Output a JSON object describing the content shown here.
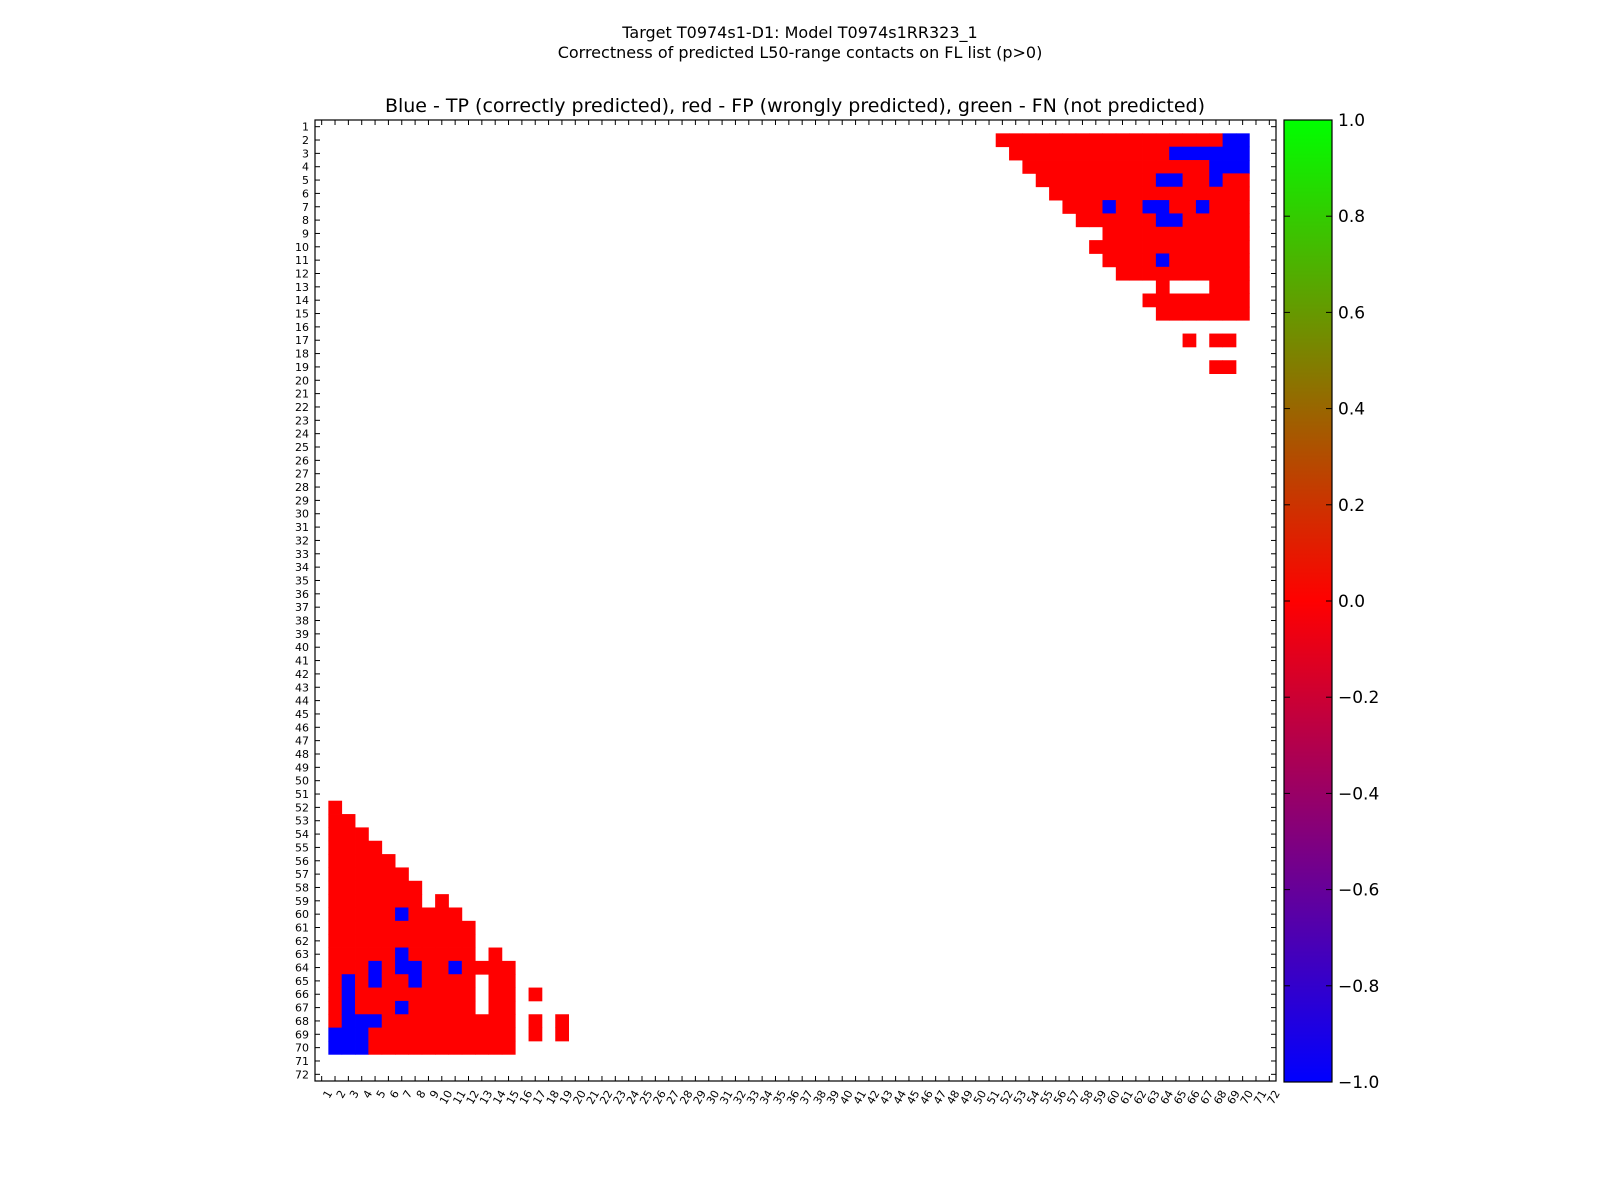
{
  "figure": {
    "suptitle_line1": "Target T0974s1-D1: Model T0974s1RR323_1",
    "suptitle_line2": "Correctness of predicted L50-range contacts on FL list (p>0)"
  },
  "chart_data": {
    "type": "heatmap",
    "title": "Blue - TP (correctly predicted), red - FP (wrongly predicted), green - FN (not predicted)",
    "n": 72,
    "tick_labels": [
      "1",
      "2",
      "3",
      "4",
      "5",
      "6",
      "7",
      "8",
      "9",
      "10",
      "11",
      "12",
      "13",
      "14",
      "15",
      "16",
      "17",
      "18",
      "19",
      "20",
      "21",
      "22",
      "23",
      "24",
      "25",
      "26",
      "27",
      "28",
      "29",
      "30",
      "31",
      "32",
      "33",
      "34",
      "35",
      "36",
      "37",
      "38",
      "39",
      "40",
      "41",
      "42",
      "43",
      "44",
      "45",
      "46",
      "47",
      "48",
      "49",
      "50",
      "51",
      "52",
      "53",
      "54",
      "55",
      "56",
      "57",
      "58",
      "59",
      "60",
      "61",
      "62",
      "63",
      "64",
      "65",
      "66",
      "67",
      "68",
      "69",
      "70",
      "71",
      "72"
    ],
    "value_legend": {
      "TP": -1.0,
      "FP": 0.0,
      "FN": 1.0
    },
    "colors": {
      "TP": "#0000ff",
      "FP": "#ff0000",
      "FN": "#00ff00",
      "background": "#ffffff"
    },
    "colorbar": {
      "range": [
        -1.0,
        1.0
      ],
      "ticks": [
        "1.0",
        "0.8",
        "0.6",
        "0.4",
        "0.2",
        "0.0",
        "−0.2",
        "−0.4",
        "−0.6",
        "−0.8",
        "−1.0"
      ],
      "tick_values": [
        1.0,
        0.8,
        0.6,
        0.4,
        0.2,
        0.0,
        -0.2,
        -0.4,
        -0.6,
        -0.8,
        -1.0
      ],
      "stops": [
        "#0000ff",
        "#ff0000",
        "#00ff00"
      ]
    },
    "fp_row_ranges": [
      {
        "row": 2,
        "from": 52,
        "to": 70
      },
      {
        "row": 3,
        "from": 53,
        "to": 70
      },
      {
        "row": 4,
        "from": 54,
        "to": 70
      },
      {
        "row": 5,
        "from": 55,
        "to": 70
      },
      {
        "row": 6,
        "from": 56,
        "to": 70
      },
      {
        "row": 7,
        "from": 57,
        "to": 70
      },
      {
        "row": 8,
        "from": 58,
        "to": 70
      },
      {
        "row": 9,
        "from": 60,
        "to": 70
      },
      {
        "row": 10,
        "from": 59,
        "to": 70
      },
      {
        "row": 11,
        "from": 60,
        "to": 70
      },
      {
        "row": 12,
        "from": 61,
        "to": 70
      },
      {
        "row": 13,
        "from": 64,
        "to": 64
      },
      {
        "row": 13,
        "from": 68,
        "to": 70
      },
      {
        "row": 14,
        "from": 63,
        "to": 70
      },
      {
        "row": 15,
        "from": 64,
        "to": 70
      },
      {
        "row": 17,
        "from": 66,
        "to": 66
      },
      {
        "row": 17,
        "from": 68,
        "to": 69
      },
      {
        "row": 19,
        "from": 68,
        "to": 69
      }
    ],
    "tp_cells": [
      [
        2,
        69
      ],
      [
        2,
        70
      ],
      [
        3,
        65
      ],
      [
        3,
        66
      ],
      [
        3,
        67
      ],
      [
        3,
        68
      ],
      [
        3,
        69
      ],
      [
        3,
        70
      ],
      [
        4,
        68
      ],
      [
        4,
        69
      ],
      [
        4,
        70
      ],
      [
        5,
        64
      ],
      [
        5,
        65
      ],
      [
        5,
        68
      ],
      [
        7,
        60
      ],
      [
        7,
        63
      ],
      [
        7,
        64
      ],
      [
        7,
        67
      ],
      [
        8,
        64
      ],
      [
        8,
        65
      ],
      [
        11,
        64
      ]
    ],
    "mirror_lower_triangle": true
  }
}
